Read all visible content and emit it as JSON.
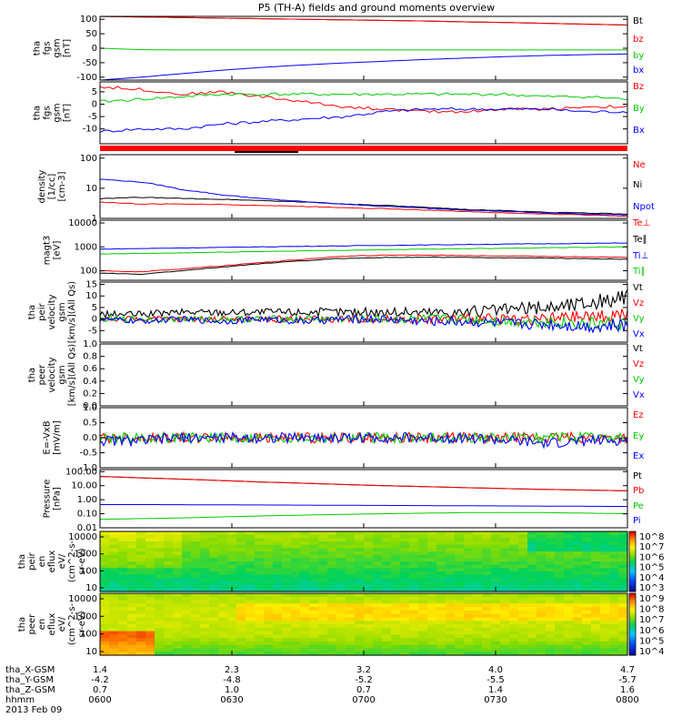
{
  "title": "P5 (TH-A) fields and ground moments overview",
  "time_ticks": [
    "0600",
    "0630",
    "0700",
    "0730",
    "0800"
  ],
  "orbit_labels": [
    "tha_X-GSM",
    "tha_Y-GSM",
    "tha_Z-GSM",
    "hhmm",
    "2013 Feb 09"
  ],
  "orbit_values": {
    "x": [
      "1.4",
      "2.3",
      "3.2",
      "4.0",
      "4.7"
    ],
    "y": [
      "-4.2",
      "-4.8",
      "-5.2",
      "-5.5",
      "-5.7"
    ],
    "z": [
      "0.7",
      "1.0",
      "0.7",
      "1.4",
      "1.6"
    ]
  },
  "colors": {
    "black": "#000000",
    "red": "#ff0000",
    "green": "#00cc00",
    "blue": "#0000ff"
  },
  "chart_data": [
    {
      "type": "line",
      "ylabel": [
        "tha",
        "fgs",
        "gsm",
        "[nT]"
      ],
      "ylim": [
        -110,
        110
      ],
      "ticks": [
        "100",
        "50",
        "0",
        "-50",
        "-100"
      ],
      "tick_values": [
        100,
        50,
        0,
        -50,
        -100
      ],
      "series": [
        {
          "name": "Bt",
          "color": "#000000",
          "values": [
            110,
            108,
            106,
            104,
            102,
            100,
            98,
            96,
            94,
            91,
            89,
            86,
            83,
            80
          ]
        },
        {
          "name": "bz",
          "color": "#ff0000",
          "values": [
            110,
            108,
            106,
            104,
            102,
            100,
            98,
            96,
            94,
            91,
            89,
            86,
            83,
            80
          ]
        },
        {
          "name": "by",
          "color": "#00cc00",
          "values": [
            0,
            -5,
            -6,
            -6,
            -6,
            -6,
            -6,
            -6,
            -6,
            -6,
            -6,
            -6,
            -6,
            -6
          ]
        },
        {
          "name": "bx",
          "color": "#0000ff",
          "values": [
            -110,
            -100,
            -88,
            -76,
            -66,
            -58,
            -51,
            -45,
            -39,
            -34,
            -29,
            -25,
            -22,
            -20
          ]
        }
      ]
    },
    {
      "type": "line",
      "ylabel": [
        "tha",
        "fgs",
        "gsm",
        "[nT]"
      ],
      "ylim": [
        -16,
        9
      ],
      "ticks": [
        "5",
        "0",
        "-5",
        "-10"
      ],
      "tick_values": [
        5,
        0,
        -5,
        -10
      ],
      "series": [
        {
          "name": "Bz",
          "color": "#ff0000",
          "values": [
            7,
            6,
            4,
            5,
            3,
            1,
            -1,
            -2,
            -3,
            -3,
            -2,
            -2,
            -1,
            -1
          ]
        },
        {
          "name": "By",
          "color": "#00cc00",
          "values": [
            1,
            2,
            3,
            4,
            4,
            4,
            4,
            4,
            4,
            4,
            4,
            3,
            3,
            2
          ]
        },
        {
          "name": "Bx",
          "color": "#0000ff",
          "values": [
            -11,
            -10,
            -10,
            -8,
            -7,
            -6,
            -5,
            -3,
            -2,
            -2,
            -2,
            -2,
            -3,
            -3
          ]
        }
      ]
    },
    {
      "type": "line",
      "ylabel": [
        "density",
        "[1/cc]",
        "[cm-3]"
      ],
      "scale": "log",
      "ylim": [
        1,
        130
      ],
      "ticks": [
        "100",
        "10",
        "1"
      ],
      "tick_values": [
        100,
        10,
        1
      ],
      "series": [
        {
          "name": "Ne",
          "color": "#ff0000",
          "values": [
            3.5,
            3,
            3,
            2.9,
            2.7,
            2.5,
            2.3,
            2.1,
            1.9,
            1.7,
            1.5,
            1.4,
            1.3,
            1.2
          ]
        },
        {
          "name": "Ni",
          "color": "#000000",
          "values": [
            4.5,
            5,
            4.6,
            4.3,
            3.9,
            3.5,
            3,
            2.7,
            2.3,
            2,
            1.8,
            1.6,
            1.5,
            1.4
          ]
        },
        {
          "name": "Npot",
          "color": "#0000ff",
          "values": [
            20,
            16,
            9,
            6,
            4.5,
            3.6,
            3,
            2.5,
            2.2,
            1.9,
            1.7,
            1.5,
            1.4,
            1.3
          ]
        }
      ]
    },
    {
      "type": "line",
      "ylabel": [
        "magt3",
        "[eV]"
      ],
      "scale": "log",
      "ylim": [
        40,
        13000
      ],
      "ticks": [
        "10000",
        "1000",
        "100"
      ],
      "tick_values": [
        10000,
        1000,
        100
      ],
      "series": [
        {
          "name": "Te⊥",
          "color": "#ff0000",
          "values": [
            100,
            90,
            120,
            160,
            220,
            300,
            400,
            450,
            450,
            430,
            420,
            400,
            380,
            360
          ]
        },
        {
          "name": "Te∥",
          "color": "#000000",
          "values": [
            80,
            70,
            100,
            140,
            200,
            260,
            330,
            360,
            370,
            360,
            350,
            340,
            320,
            300
          ]
        },
        {
          "name": "Ti⊥",
          "color": "#0000ff",
          "values": [
            800,
            850,
            900,
            950,
            1000,
            1050,
            1100,
            1150,
            1200,
            1250,
            1300,
            1350,
            1400,
            1450
          ]
        },
        {
          "name": "Ti∥",
          "color": "#00cc00",
          "values": [
            500,
            530,
            560,
            600,
            640,
            680,
            720,
            760,
            800,
            840,
            880,
            920,
            960,
            1000
          ]
        }
      ]
    },
    {
      "type": "line",
      "ylabel": [
        "tha",
        "peir",
        "velocity",
        "gsm",
        "[km/s](All Qs)"
      ],
      "ylim": [
        -10,
        16
      ],
      "ticks": [
        "15",
        "10",
        "5",
        "0",
        "-5"
      ],
      "tick_values": [
        15,
        10,
        5,
        0,
        -5
      ],
      "series": [
        {
          "name": "Vt",
          "color": "#000000",
          "values": [
            2,
            2,
            3,
            3,
            3,
            3,
            3,
            3,
            3,
            3,
            4,
            5,
            7,
            9
          ]
        },
        {
          "name": "Vz",
          "color": "#ff0000",
          "values": [
            0,
            0,
            0,
            0,
            0,
            0,
            0,
            0,
            0,
            0,
            0,
            0,
            1,
            2
          ]
        },
        {
          "name": "Vy",
          "color": "#00cc00",
          "values": [
            0,
            0,
            0,
            0,
            0,
            0,
            0,
            0,
            0,
            0,
            -1,
            -1,
            -2,
            -2
          ]
        },
        {
          "name": "Vx",
          "color": "#0000ff",
          "values": [
            0,
            -1,
            0,
            -1,
            0,
            -1,
            0,
            0,
            -1,
            -1,
            -2,
            -2,
            -3,
            -3
          ]
        }
      ]
    },
    {
      "type": "line",
      "ylabel": [
        "tha",
        "peer",
        "velocity",
        "gsm",
        "[km/s](All Qs)"
      ],
      "ylim": [
        0,
        1
      ],
      "ticks": [
        "1.0",
        "0.8",
        "0.6",
        "0.4",
        "0.2",
        "0.0"
      ],
      "tick_values": [
        1.0,
        0.8,
        0.6,
        0.4,
        0.2,
        0.0
      ],
      "series": [
        {
          "name": "Vt",
          "color": "#000000",
          "values": []
        },
        {
          "name": "Vz",
          "color": "#ff0000",
          "values": []
        },
        {
          "name": "Vy",
          "color": "#00cc00",
          "values": []
        },
        {
          "name": "Vx",
          "color": "#0000ff",
          "values": []
        }
      ]
    },
    {
      "type": "line",
      "ylabel": [
        "E=-VxB",
        "[mV/m]"
      ],
      "ylim": [
        -1,
        1
      ],
      "ticks": [
        "1.0",
        "0.5",
        "0.0",
        "-0.5",
        "-1.0"
      ],
      "tick_values": [
        1.0,
        0.5,
        0.0,
        -0.5,
        -1.0
      ],
      "series": [
        {
          "name": "Ez",
          "color": "#ff0000",
          "values": [
            0,
            0,
            0,
            0,
            0,
            0,
            0,
            0,
            0,
            0,
            0,
            0,
            0,
            0
          ]
        },
        {
          "name": "Ey",
          "color": "#00cc00",
          "values": [
            0,
            0,
            0,
            0,
            0,
            0,
            0,
            0,
            0,
            0,
            0,
            0,
            0,
            0
          ]
        },
        {
          "name": "Ex",
          "color": "#0000ff",
          "values": [
            -0.1,
            -0.1,
            0,
            0,
            0,
            0,
            0,
            0,
            0,
            0,
            -0.1,
            -0.2,
            -0.1,
            -0.1
          ]
        }
      ]
    },
    {
      "type": "line",
      "ylabel": [
        "Pressure",
        "[nPa]"
      ],
      "scale": "log",
      "ylim": [
        0.01,
        140
      ],
      "ticks": [
        "100.00",
        "10.00",
        "1.00",
        "0.10",
        "0.01"
      ],
      "tick_values": [
        100,
        10,
        1,
        0.1,
        0.01
      ],
      "series": [
        {
          "name": "Pt",
          "color": "#000000",
          "values": [
            45,
            36,
            29,
            23,
            18,
            15,
            12,
            10,
            8.5,
            7.2,
            6.2,
            5.4,
            4.8,
            4.3
          ]
        },
        {
          "name": "Pb",
          "color": "#ff0000",
          "values": [
            45,
            36,
            29,
            23,
            18,
            15,
            12,
            10,
            8.5,
            7.2,
            6.2,
            5.4,
            4.8,
            4.3
          ]
        },
        {
          "name": "Pe",
          "color": "#00cc00",
          "values": [
            0.04,
            0.045,
            0.05,
            0.06,
            0.07,
            0.08,
            0.09,
            0.1,
            0.11,
            0.12,
            0.12,
            0.12,
            0.11,
            0.1
          ]
        },
        {
          "name": "Pi",
          "color": "#0000ff",
          "values": [
            0.45,
            0.45,
            0.44,
            0.43,
            0.42,
            0.41,
            0.4,
            0.39,
            0.38,
            0.37,
            0.36,
            0.35,
            0.34,
            0.33
          ]
        }
      ]
    },
    {
      "type": "heatmap",
      "ylabel": [
        "tha",
        "peir",
        "en",
        "eflux",
        "eV/",
        "(cm^2-s-",
        "sr-eV)"
      ],
      "ticks": [
        "10000",
        "1000",
        "100",
        "10"
      ],
      "colorbar_ticks": [
        "10^8",
        "10^7",
        "10^6",
        "10^5",
        "10^4",
        "10^3"
      ],
      "colorbar_range": [
        3,
        8
      ]
    },
    {
      "type": "heatmap",
      "ylabel": [
        "tha",
        "peer",
        "en",
        "eflux",
        "eV/",
        "(cm^2-s-",
        "sr-eV)"
      ],
      "ticks": [
        "10000",
        "1000",
        "100",
        "10"
      ],
      "colorbar_ticks": [
        "10^9",
        "10^8",
        "10^7",
        "10^6",
        "10^5",
        "10^4"
      ],
      "colorbar_range": [
        4,
        9
      ]
    }
  ]
}
